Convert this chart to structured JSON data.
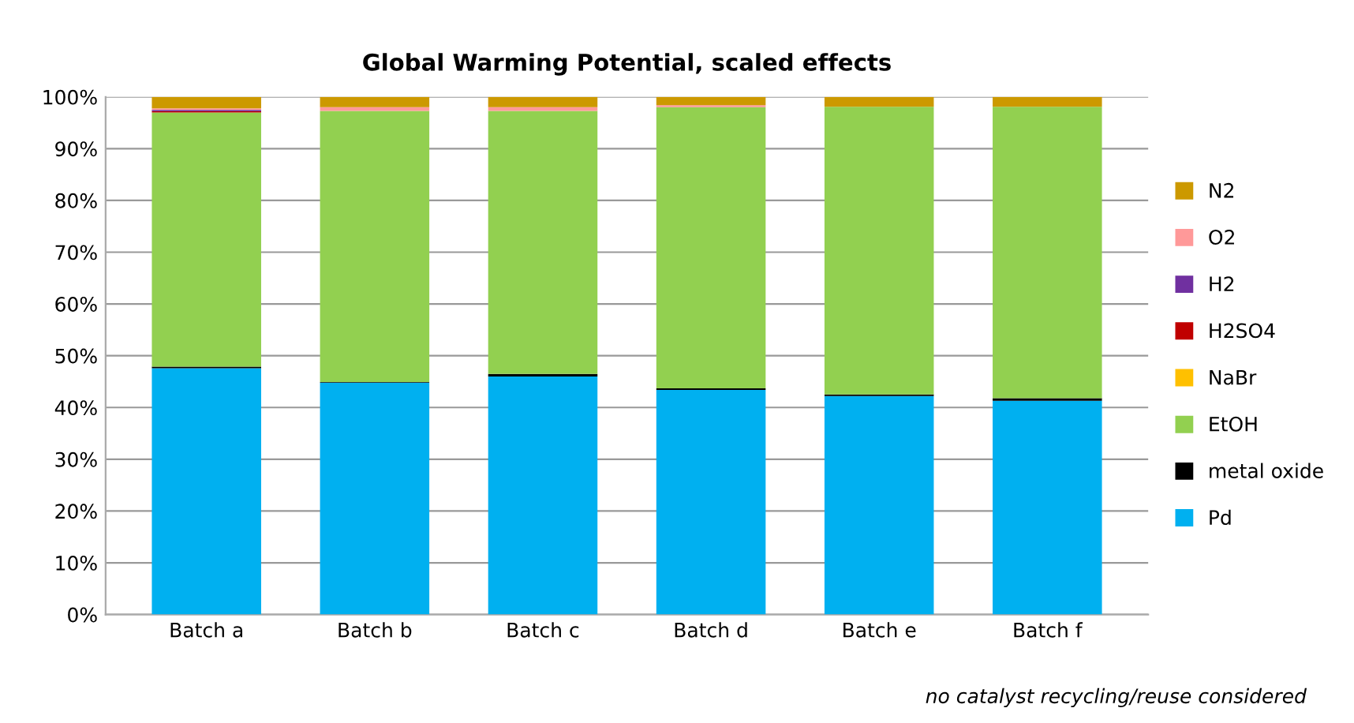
{
  "chart_data": {
    "type": "bar",
    "title": "Global Warming Potential, scaled effects",
    "stacked": true,
    "categories": [
      "Batch a",
      "Batch b",
      "Batch c",
      "Batch d",
      "Batch e",
      "Batch f"
    ],
    "series": [
      {
        "name": "Pd",
        "color": "#00b0f0",
        "values": [
          47.6,
          44.8,
          46.0,
          43.4,
          42.2,
          41.3
        ]
      },
      {
        "name": "metal oxide",
        "color": "#000000",
        "values": [
          0.3,
          0.1,
          0.5,
          0.3,
          0.3,
          0.5
        ]
      },
      {
        "name": "EtOH",
        "color": "#92d050",
        "values": [
          49.1,
          52.4,
          50.8,
          54.3,
          55.6,
          56.3
        ]
      },
      {
        "name": "NaBr",
        "color": "#ffc000",
        "values": [
          0,
          0,
          0,
          0,
          0,
          0
        ]
      },
      {
        "name": "H2SO4",
        "color": "#c00000",
        "values": [
          0.2,
          0,
          0,
          0,
          0,
          0
        ]
      },
      {
        "name": "H2",
        "color": "#7030a0",
        "values": [
          0.3,
          0,
          0,
          0,
          0,
          0
        ]
      },
      {
        "name": "O2",
        "color": "#ff9999",
        "values": [
          0.3,
          0.7,
          0.7,
          0.4,
          0,
          0
        ]
      },
      {
        "name": "N2",
        "color": "#cc9900",
        "values": [
          2.2,
          2.0,
          2.0,
          1.6,
          1.9,
          1.9
        ]
      }
    ],
    "ylim": [
      0,
      100
    ],
    "yticks": [
      {
        "value": 0,
        "label": "0%"
      },
      {
        "value": 10,
        "label": "10%"
      },
      {
        "value": 20,
        "label": "20%"
      },
      {
        "value": 30,
        "label": "30%"
      },
      {
        "value": 40,
        "label": "40%"
      },
      {
        "value": 50,
        "label": "50%"
      },
      {
        "value": 60,
        "label": "60%"
      },
      {
        "value": 70,
        "label": "70%"
      },
      {
        "value": 80,
        "label": "80%"
      },
      {
        "value": 90,
        "label": "90%"
      },
      {
        "value": 100,
        "label": "100%"
      }
    ],
    "grid": "y",
    "legend": "right",
    "annotations": [
      "no catalyst recycling/reuse considered"
    ]
  }
}
